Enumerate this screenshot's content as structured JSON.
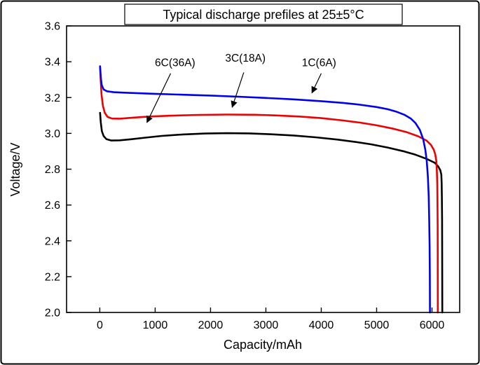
{
  "chart_data": {
    "type": "line",
    "title": "Typical discharge prefiles at 25±5°C",
    "xlabel": "Capacity/mAh",
    "ylabel": "Voltage/V",
    "xlim": [
      -600,
      6500
    ],
    "ylim": [
      2.0,
      3.6
    ],
    "xticks": [
      0,
      1000,
      2000,
      3000,
      4000,
      5000,
      6000
    ],
    "yticks": [
      2.0,
      2.2,
      2.4,
      2.6,
      2.8,
      3.0,
      3.2,
      3.4,
      3.6
    ],
    "grid": false,
    "legend_position": "none",
    "series": [
      {
        "id": "6c-36a",
        "name": "6C(36A)",
        "color": "#000000",
        "points": [
          [
            5,
            3.115
          ],
          [
            18,
            3.062
          ],
          [
            38,
            3.012
          ],
          [
            70,
            2.985
          ],
          [
            120,
            2.968
          ],
          [
            210,
            2.96
          ],
          [
            360,
            2.961
          ],
          [
            560,
            2.967
          ],
          [
            820,
            2.976
          ],
          [
            1120,
            2.986
          ],
          [
            1500,
            2.994
          ],
          [
            1900,
            2.999
          ],
          [
            2300,
            3.001
          ],
          [
            2700,
            3.0
          ],
          [
            3100,
            2.995
          ],
          [
            3500,
            2.988
          ],
          [
            3900,
            2.978
          ],
          [
            4300,
            2.965
          ],
          [
            4600,
            2.953
          ],
          [
            4900,
            2.939
          ],
          [
            5200,
            2.921
          ],
          [
            5500,
            2.899
          ],
          [
            5700,
            2.881
          ],
          [
            5900,
            2.858
          ],
          [
            6050,
            2.836
          ],
          [
            6110,
            2.816
          ],
          [
            6150,
            2.795
          ],
          [
            6168,
            2.77
          ],
          [
            6175,
            2.72
          ],
          [
            6179,
            2.64
          ],
          [
            6182,
            2.52
          ],
          [
            6184,
            2.38
          ],
          [
            6185,
            2.2
          ],
          [
            6186,
            2.0
          ]
        ]
      },
      {
        "id": "3c-18a",
        "name": "3C(18A)",
        "color": "#ee0000",
        "points": [
          [
            5,
            3.37
          ],
          [
            15,
            3.305
          ],
          [
            30,
            3.22
          ],
          [
            55,
            3.155
          ],
          [
            90,
            3.115
          ],
          [
            140,
            3.092
          ],
          [
            220,
            3.083
          ],
          [
            360,
            3.082
          ],
          [
            600,
            3.088
          ],
          [
            900,
            3.094
          ],
          [
            1300,
            3.099
          ],
          [
            1800,
            3.103
          ],
          [
            2300,
            3.105
          ],
          [
            2800,
            3.104
          ],
          [
            3200,
            3.1
          ],
          [
            3600,
            3.094
          ],
          [
            4000,
            3.085
          ],
          [
            4400,
            3.072
          ],
          [
            4700,
            3.06
          ],
          [
            5000,
            3.045
          ],
          [
            5300,
            3.026
          ],
          [
            5550,
            3.006
          ],
          [
            5750,
            2.984
          ],
          [
            5900,
            2.96
          ],
          [
            5980,
            2.936
          ],
          [
            6030,
            2.91
          ],
          [
            6060,
            2.882
          ],
          [
            6078,
            2.845
          ],
          [
            6088,
            2.795
          ],
          [
            6095,
            2.72
          ],
          [
            6099,
            2.62
          ],
          [
            6102,
            2.48
          ],
          [
            6104,
            2.3
          ],
          [
            6105,
            2.0
          ]
        ]
      },
      {
        "id": "1c-6a",
        "name": "1C(6A)",
        "color": "#0000ee",
        "points": [
          [
            5,
            3.375
          ],
          [
            18,
            3.315
          ],
          [
            35,
            3.27
          ],
          [
            70,
            3.245
          ],
          [
            130,
            3.235
          ],
          [
            250,
            3.23
          ],
          [
            450,
            3.227
          ],
          [
            700,
            3.224
          ],
          [
            1000,
            3.221
          ],
          [
            1500,
            3.216
          ],
          [
            2000,
            3.211
          ],
          [
            2500,
            3.205
          ],
          [
            3000,
            3.198
          ],
          [
            3500,
            3.19
          ],
          [
            4000,
            3.18
          ],
          [
            4400,
            3.17
          ],
          [
            4700,
            3.16
          ],
          [
            5000,
            3.147
          ],
          [
            5200,
            3.135
          ],
          [
            5350,
            3.122
          ],
          [
            5500,
            3.104
          ],
          [
            5620,
            3.082
          ],
          [
            5700,
            3.058
          ],
          [
            5780,
            3.02
          ],
          [
            5840,
            2.968
          ],
          [
            5880,
            2.908
          ],
          [
            5905,
            2.845
          ],
          [
            5925,
            2.76
          ],
          [
            5940,
            2.65
          ],
          [
            5950,
            2.52
          ],
          [
            5957,
            2.37
          ],
          [
            5961,
            2.22
          ],
          [
            5963,
            2.0
          ]
        ]
      }
    ],
    "annotations": [
      {
        "label": "6C(36A)",
        "text": [
          1360,
          3.375
        ],
        "arrow_from": [
          1280,
          3.335
        ],
        "arrow_to": [
          850,
          3.06
        ]
      },
      {
        "label": "3C(18A)",
        "text": [
          2630,
          3.4
        ],
        "arrow_from": [
          2600,
          3.34
        ],
        "arrow_to": [
          2390,
          3.145
        ]
      },
      {
        "label": "1C(6A)",
        "text": [
          3960,
          3.375
        ],
        "arrow_from": [
          4000,
          3.335
        ],
        "arrow_to": [
          3830,
          3.225
        ]
      }
    ]
  }
}
